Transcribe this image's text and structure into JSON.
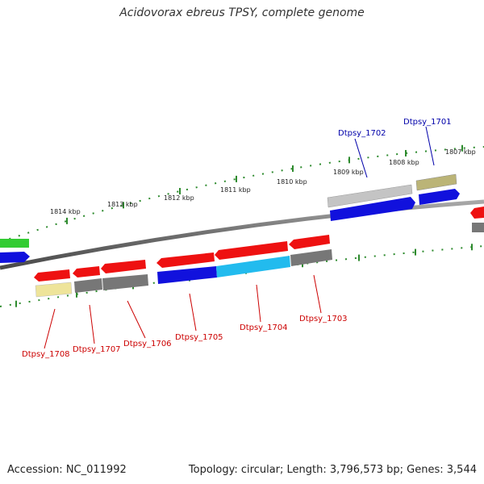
{
  "title": "Acidovorax ebreus TPSY, complete genome",
  "footer": {
    "accession": "Accession: NC_011992",
    "summary": "Topology: circular; Length: 3,796,573 bp; Genes: 3,544"
  },
  "colors": {
    "red": "#ee1111",
    "blue": "#1111dd",
    "cyan": "#22bbee",
    "gray": "#777777",
    "light_gray": "#c4c4c4",
    "olive": "#bbb477",
    "pale_yellow": "#eee49a",
    "green": "#33cc33",
    "label_red": "#cc0000",
    "label_blue": "#0000aa",
    "tick": "#2e8b2e"
  },
  "kbp_labels": [
    "1814 kbp",
    "1813 kbp",
    "1812 kbp",
    "1811 kbp",
    "1810 kbp",
    "1809 kbp",
    "1808 kbp",
    "1807 kbp"
  ],
  "gene_labels": [
    {
      "text": "Dtpsy_1708",
      "color": "label_red"
    },
    {
      "text": "Dtpsy_1707",
      "color": "label_red"
    },
    {
      "text": "Dtpsy_1706",
      "color": "label_red"
    },
    {
      "text": "Dtpsy_1705",
      "color": "label_red"
    },
    {
      "text": "Dtpsy_1704",
      "color": "label_red"
    },
    {
      "text": "Dtpsy_1703",
      "color": "label_red"
    },
    {
      "text": "Dtpsy_1702",
      "color": "label_blue"
    },
    {
      "text": "Dtpsy_1701",
      "color": "label_blue"
    }
  ],
  "genes": [
    {
      "id": "Dtpsy_1708",
      "color": "red",
      "strand": "reverse",
      "track": "inner-1"
    },
    {
      "id": "Dtpsy_1708",
      "color": "pale_yellow",
      "strand": "none",
      "track": "inner-2"
    },
    {
      "id": "Dtpsy_1707",
      "color": "red",
      "strand": "reverse",
      "track": "inner-1"
    },
    {
      "id": "Dtpsy_1707",
      "color": "gray",
      "strand": "none",
      "track": "inner-2"
    },
    {
      "id": "Dtpsy_1706",
      "color": "red",
      "strand": "reverse",
      "track": "inner-1"
    },
    {
      "id": "Dtpsy_1706",
      "color": "gray",
      "strand": "none",
      "track": "inner-2"
    },
    {
      "id": "Dtpsy_1705",
      "color": "red",
      "strand": "reverse",
      "track": "inner-1"
    },
    {
      "id": "Dtpsy_1705",
      "color": "blue",
      "strand": "none",
      "track": "inner-2"
    },
    {
      "id": "Dtpsy_1704",
      "color": "red",
      "strand": "reverse",
      "track": "inner-1"
    },
    {
      "id": "Dtpsy_1704",
      "color": "cyan",
      "strand": "none",
      "track": "inner-2"
    },
    {
      "id": "Dtpsy_1703",
      "color": "red",
      "strand": "reverse",
      "track": "inner-1"
    },
    {
      "id": "Dtpsy_1703",
      "color": "gray",
      "strand": "none",
      "track": "inner-2"
    },
    {
      "id": "Dtpsy_1702",
      "color": "blue",
      "strand": "forward",
      "track": "outer-1"
    },
    {
      "id": "Dtpsy_1702",
      "color": "light_gray",
      "strand": "none",
      "track": "outer-2"
    },
    {
      "id": "Dtpsy_1701",
      "color": "blue",
      "strand": "forward",
      "track": "outer-1"
    },
    {
      "id": "Dtpsy_1701",
      "color": "olive",
      "strand": "none",
      "track": "outer-2"
    }
  ]
}
